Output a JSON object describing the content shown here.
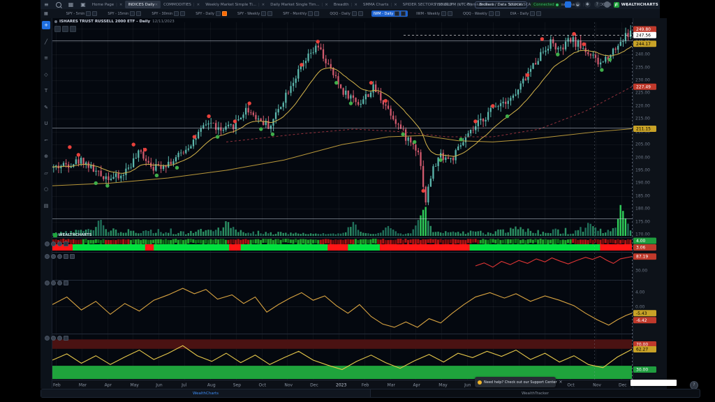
{
  "header": {
    "left_icons": [
      "menu",
      "search",
      "layout-grid",
      "screenshot"
    ],
    "tabs": [
      {
        "label": "Home Page",
        "active": false
      },
      {
        "label": "INDICES Daily",
        "active": true
      },
      {
        "label": "COMMODITIES",
        "active": false
      },
      {
        "label": "Weekly Market Simple Ti...",
        "active": false
      },
      {
        "label": "Daily Market Single Tim...",
        "active": false
      },
      {
        "label": "Breadth",
        "active": false
      },
      {
        "label": "SMMA Charts",
        "active": false
      },
      {
        "label": "SPIDER SECTORS HOURLY",
        "active": false
      },
      {
        "label": "Premium Dash",
        "active": false
      },
      {
        "label": "STOCK SCANNERS",
        "active": false
      },
      {
        "label": "Seasonality",
        "active": false
      },
      {
        "label": "STOCK S",
        "active": false
      }
    ],
    "add_tab": "+",
    "clock": "7:18:01 PM (UTC-5)",
    "brokers_button": "Brokers / Data Sources",
    "connection": "Connected",
    "right_icons": [
      "save",
      "notifications",
      "settings",
      "help"
    ],
    "brand": "WEALTHCHARTS"
  },
  "ribbon": {
    "items": [
      {
        "label": "SPY - 5min"
      },
      {
        "label": "SPY - 15min"
      },
      {
        "label": "SPY - 30min"
      },
      {
        "label": "SPY - Daily",
        "orange": true
      },
      {
        "label": "SPY - Weekly"
      },
      {
        "label": "SPY - Monthly"
      },
      {
        "label": "QQQ - Daily"
      },
      {
        "label": "IWM - Daily",
        "active": true
      },
      {
        "label": "IWM - Weekly"
      },
      {
        "label": "QQQ - Weekly"
      },
      {
        "label": "DIA - Daily"
      }
    ]
  },
  "toolbar_icons": [
    "crosshair",
    "trendline",
    "fib-retracement",
    "shapes",
    "text-tool",
    "brush",
    "magnet",
    "measure",
    "zoom-in",
    "eraser",
    "ellipse",
    "patterns"
  ],
  "chart": {
    "title": "ISHARES TRUST RUSSELL 2000 ETF - Daily",
    "title_date": "12/11/2023",
    "watermark": "WEALTHCHARTS"
  },
  "chart_data": {
    "type": "candlestick",
    "symbol": "ISHARES TRUST RUSSELL 2000 ETF (IWM)",
    "timeframe": "Daily",
    "x_months": [
      "Feb",
      "Mar",
      "Apr",
      "May",
      "Jun",
      "Jul",
      "Aug",
      "Sep",
      "Oct",
      "Nov",
      "Dec",
      "2023",
      "Feb",
      "Mar",
      "Apr",
      "May",
      "Jun",
      "Jul",
      "Aug",
      "Sep",
      "Oct",
      "Nov",
      "Dec"
    ],
    "price_axis_labels": [
      "250.00",
      "245.00",
      "240.00",
      "235.00",
      "230.00",
      "225.00",
      "220.00",
      "215.00",
      "210.00",
      "205.00",
      "200.00",
      "195.00",
      "190.00",
      "185.00",
      "180.00",
      "175.00",
      "170.00"
    ],
    "price_axis": {
      "min": 170,
      "max": 250,
      "step": 5
    },
    "last_price": 247.56,
    "axis_badges": [
      {
        "value": "249.80",
        "bg": "#c0392b",
        "fg": "#ffffff",
        "price": 249.8
      },
      {
        "value": "247.56",
        "bg": "#ffffff",
        "fg": "#000000",
        "price": 247.56
      },
      {
        "value": "244.17",
        "bg": "#c8a227",
        "fg": "#000000",
        "price": 244.17
      },
      {
        "value": "227.49",
        "bg": "#c0392b",
        "fg": "#ffffff",
        "price": 227.49
      },
      {
        "value": "211.15",
        "bg": "#c8a227",
        "fg": "#000000",
        "price": 211.15
      }
    ],
    "horizontal_lines": [
      245.35,
      211.6,
      176.2
    ],
    "price_path": [
      [
        0,
        196
      ],
      [
        0.05,
        199
      ],
      [
        0.08,
        193
      ],
      [
        0.115,
        192
      ],
      [
        0.15,
        202
      ],
      [
        0.175,
        196
      ],
      [
        0.21,
        199
      ],
      [
        0.24,
        206
      ],
      [
        0.27,
        214
      ],
      [
        0.29,
        210
      ],
      [
        0.31,
        212
      ],
      [
        0.335,
        219
      ],
      [
        0.355,
        215
      ],
      [
        0.375,
        212
      ],
      [
        0.41,
        228
      ],
      [
        0.445,
        240
      ],
      [
        0.458,
        243
      ],
      [
        0.475,
        236
      ],
      [
        0.5,
        226
      ],
      [
        0.53,
        221
      ],
      [
        0.555,
        227
      ],
      [
        0.58,
        219
      ],
      [
        0.61,
        208
      ],
      [
        0.632,
        203
      ],
      [
        0.645,
        183
      ],
      [
        0.655,
        194
      ],
      [
        0.67,
        201
      ],
      [
        0.69,
        199
      ],
      [
        0.71,
        206
      ],
      [
        0.74,
        214
      ],
      [
        0.77,
        221
      ],
      [
        0.8,
        224
      ],
      [
        0.815,
        230
      ],
      [
        0.84,
        239
      ],
      [
        0.862,
        245
      ],
      [
        0.878,
        241
      ],
      [
        0.895,
        246
      ],
      [
        0.915,
        243
      ],
      [
        0.93,
        240
      ],
      [
        0.945,
        236
      ],
      [
        0.955,
        238
      ],
      [
        0.975,
        243
      ],
      [
        0.99,
        247
      ],
      [
        1,
        248.5
      ]
    ],
    "ma_slow_yellow": [
      [
        0,
        189
      ],
      [
        0.1,
        190
      ],
      [
        0.2,
        192
      ],
      [
        0.3,
        195
      ],
      [
        0.4,
        199
      ],
      [
        0.5,
        205
      ],
      [
        0.58,
        208
      ],
      [
        0.64,
        208.5
      ],
      [
        0.7,
        206.5
      ],
      [
        0.76,
        206
      ],
      [
        0.82,
        207
      ],
      [
        0.88,
        208.5
      ],
      [
        0.94,
        210
      ],
      [
        1,
        211.15
      ]
    ],
    "ma_red_dashed": [
      [
        0.3,
        206
      ],
      [
        0.42,
        209
      ],
      [
        0.52,
        211
      ],
      [
        0.6,
        210
      ],
      [
        0.68,
        208
      ],
      [
        0.76,
        208
      ],
      [
        0.84,
        211
      ],
      [
        0.92,
        218
      ],
      [
        1,
        227.49
      ]
    ],
    "ma_fast_period": 18,
    "signals": [
      [
        0.03,
        204,
        "r"
      ],
      [
        0.045,
        201,
        "r"
      ],
      [
        0.075,
        190,
        "g"
      ],
      [
        0.095,
        189,
        "g"
      ],
      [
        0.14,
        205,
        "r"
      ],
      [
        0.16,
        203,
        "r"
      ],
      [
        0.18,
        193,
        "g"
      ],
      [
        0.215,
        196,
        "g"
      ],
      [
        0.245,
        208,
        "r"
      ],
      [
        0.27,
        216,
        "r"
      ],
      [
        0.285,
        208,
        "g"
      ],
      [
        0.315,
        214,
        "r"
      ],
      [
        0.34,
        221,
        "r"
      ],
      [
        0.36,
        211,
        "g"
      ],
      [
        0.38,
        209,
        "g"
      ],
      [
        0.43,
        236,
        "r"
      ],
      [
        0.458,
        245,
        "r"
      ],
      [
        0.49,
        229,
        "g"
      ],
      [
        0.515,
        221,
        "g"
      ],
      [
        0.55,
        229,
        "r"
      ],
      [
        0.575,
        222,
        "r"
      ],
      [
        0.605,
        209,
        "g"
      ],
      [
        0.625,
        206,
        "g"
      ],
      [
        0.64,
        187,
        "r"
      ],
      [
        0.67,
        199,
        "g"
      ],
      [
        0.705,
        207,
        "g"
      ],
      [
        0.73,
        214,
        "r"
      ],
      [
        0.76,
        220,
        "r"
      ],
      [
        0.785,
        216,
        "g"
      ],
      [
        0.82,
        232,
        "r"
      ],
      [
        0.845,
        246,
        "r"
      ],
      [
        0.872,
        240,
        "g"
      ],
      [
        0.9,
        248,
        "r"
      ],
      [
        0.917,
        244,
        "r"
      ],
      [
        0.948,
        234,
        "g"
      ],
      [
        0.962,
        238,
        "g"
      ]
    ],
    "volume_spikes": [
      [
        0.08,
        14
      ],
      [
        0.3,
        16
      ],
      [
        0.52,
        18
      ],
      [
        0.58,
        14
      ],
      [
        0.64,
        48
      ],
      [
        0.8,
        12
      ],
      [
        0.93,
        16
      ],
      [
        0.985,
        40
      ]
    ],
    "heat_strip": {
      "row1_red": [
        [
          0.0,
          0.05
        ],
        [
          0.09,
          0.13
        ],
        [
          0.3,
          0.34
        ],
        [
          0.46,
          0.52
        ],
        [
          0.56,
          0.74
        ],
        [
          0.9,
          1.0
        ]
      ],
      "row2_red": [
        [
          0.0,
          0.035
        ],
        [
          0.16,
          0.175
        ],
        [
          0.305,
          0.325
        ],
        [
          0.475,
          0.51
        ],
        [
          0.565,
          0.72
        ],
        [
          0.945,
          1.0
        ]
      ],
      "badges": [
        {
          "value": "4.00",
          "bg": "#1f9d3f",
          "fg": "#ffffff"
        },
        {
          "value": "3.06",
          "bg": "#c0392b",
          "fg": "#ffffff"
        }
      ]
    },
    "panel2": {
      "line": [
        [
          0.73,
          50
        ],
        [
          0.745,
          62
        ],
        [
          0.76,
          45
        ],
        [
          0.775,
          68
        ],
        [
          0.79,
          55
        ],
        [
          0.805,
          72
        ],
        [
          0.82,
          60
        ],
        [
          0.835,
          78
        ],
        [
          0.85,
          66
        ],
        [
          0.862,
          82
        ],
        [
          0.875,
          70
        ],
        [
          0.89,
          58
        ],
        [
          0.905,
          72
        ],
        [
          0.92,
          84
        ],
        [
          0.932,
          76
        ],
        [
          0.945,
          88
        ],
        [
          0.957,
          72
        ],
        [
          0.968,
          60
        ],
        [
          0.98,
          78
        ],
        [
          1,
          87.19
        ]
      ],
      "badge": {
        "value": "87.19",
        "bg": "#c0392b",
        "fg": "#ffffff"
      },
      "plain_label": "30.00"
    },
    "panel3": {
      "line": [
        [
          0,
          0.1
        ],
        [
          0.025,
          0.45
        ],
        [
          0.05,
          -0.15
        ],
        [
          0.075,
          0.25
        ],
        [
          0.1,
          -0.35
        ],
        [
          0.125,
          0.15
        ],
        [
          0.15,
          -0.2
        ],
        [
          0.175,
          0.3
        ],
        [
          0.2,
          0.55
        ],
        [
          0.225,
          0.85
        ],
        [
          0.245,
          0.6
        ],
        [
          0.265,
          0.8
        ],
        [
          0.285,
          0.35
        ],
        [
          0.31,
          0.55
        ],
        [
          0.33,
          0.15
        ],
        [
          0.35,
          0.45
        ],
        [
          0.37,
          -0.25
        ],
        [
          0.39,
          0.1
        ],
        [
          0.41,
          0.4
        ],
        [
          0.43,
          0.65
        ],
        [
          0.45,
          0.3
        ],
        [
          0.47,
          0.5
        ],
        [
          0.49,
          0.05
        ],
        [
          0.51,
          -0.3
        ],
        [
          0.53,
          0.1
        ],
        [
          0.55,
          -0.45
        ],
        [
          0.57,
          -0.8
        ],
        [
          0.59,
          -0.95
        ],
        [
          0.61,
          -0.7
        ],
        [
          0.63,
          -0.95
        ],
        [
          0.65,
          -0.55
        ],
        [
          0.67,
          -0.75
        ],
        [
          0.69,
          -0.3
        ],
        [
          0.71,
          0.1
        ],
        [
          0.73,
          0.45
        ],
        [
          0.755,
          0.65
        ],
        [
          0.78,
          0.4
        ],
        [
          0.8,
          0.6
        ],
        [
          0.825,
          0.25
        ],
        [
          0.85,
          0.5
        ],
        [
          0.875,
          0.3
        ],
        [
          0.9,
          0.05
        ],
        [
          0.92,
          -0.3
        ],
        [
          0.94,
          -0.6
        ],
        [
          0.96,
          -0.85
        ],
        [
          0.975,
          -0.6
        ],
        [
          0.99,
          -0.4
        ],
        [
          1,
          -0.3
        ]
      ],
      "plain_labels": [
        "4.00",
        "0.00",
        "-4.00"
      ],
      "badges": [
        {
          "value": "-5.43",
          "bg": "#c8a227",
          "fg": "#000000"
        },
        {
          "value": "-6.42",
          "bg": "#c0392b",
          "fg": "#ffffff"
        }
      ]
    },
    "panel4": {
      "line": [
        [
          0,
          45
        ],
        [
          0.025,
          55
        ],
        [
          0.05,
          40
        ],
        [
          0.075,
          52
        ],
        [
          0.1,
          38
        ],
        [
          0.125,
          50
        ],
        [
          0.15,
          61
        ],
        [
          0.175,
          46
        ],
        [
          0.2,
          56
        ],
        [
          0.225,
          68
        ],
        [
          0.25,
          52
        ],
        [
          0.275,
          43
        ],
        [
          0.3,
          56
        ],
        [
          0.325,
          41
        ],
        [
          0.35,
          53
        ],
        [
          0.375,
          38
        ],
        [
          0.4,
          49
        ],
        [
          0.425,
          59
        ],
        [
          0.45,
          45
        ],
        [
          0.475,
          37
        ],
        [
          0.5,
          30
        ],
        [
          0.525,
          43
        ],
        [
          0.55,
          53
        ],
        [
          0.575,
          41
        ],
        [
          0.6,
          32
        ],
        [
          0.625,
          44
        ],
        [
          0.65,
          54
        ],
        [
          0.675,
          42
        ],
        [
          0.7,
          56
        ],
        [
          0.725,
          49
        ],
        [
          0.75,
          59
        ],
        [
          0.775,
          51
        ],
        [
          0.8,
          61
        ],
        [
          0.825,
          46
        ],
        [
          0.85,
          56
        ],
        [
          0.875,
          42
        ],
        [
          0.9,
          52
        ],
        [
          0.925,
          38
        ],
        [
          0.95,
          33
        ],
        [
          0.975,
          50
        ],
        [
          1,
          62.27
        ]
      ],
      "upper_band": [
        78,
        63
      ],
      "lower_band": [
        36,
        14
      ],
      "badges": [
        {
          "value": "70.00",
          "bg": "#c0392b",
          "fg": "#ffffff",
          "v": 70
        },
        {
          "value": "62.27",
          "bg": "#c8a227",
          "fg": "#000000",
          "v": 62.27
        },
        {
          "value": "30.00",
          "bg": "#1f9d3f",
          "fg": "#ffffff",
          "v": 30
        }
      ]
    }
  },
  "toast": {
    "text": "Need help? Check out our Support Center",
    "close": "×"
  },
  "bottom_tabs": [
    {
      "label": "WealthCharts",
      "active": true
    },
    {
      "label": "WealthTracker",
      "active": false
    }
  ],
  "colors": {
    "accent_blue": "#1f6fe0",
    "bull": "#5cb8ad",
    "bear": "#d25a6e",
    "ma_fast": "#d4b44a",
    "ma_slow": "#b8973a",
    "ma_long": "#93323d",
    "volume": "#2a8f63",
    "volume_spike": "#2fd05a",
    "heat_green": "#00e13f",
    "heat_red": "#ff1616",
    "panel2_line": "#e03535",
    "panel3_line": "#d9a441",
    "panel4_line": "#e6c84a",
    "band_red": "#4a1212",
    "band_green": "#1fa33c",
    "connected": "#35c466",
    "grid": "rgba(255,255,255,0.045)",
    "axis_text": "#6f7989"
  }
}
